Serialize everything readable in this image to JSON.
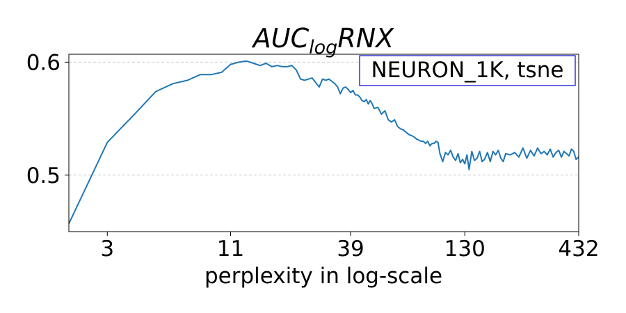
{
  "chart_data": {
    "type": "line",
    "title_main": "AUC",
    "title_sub": "log",
    "title_rest": "RNX",
    "xlabel": "perplexity in log-scale",
    "ylabel": "",
    "x_scale": "log",
    "xlim": [
      2,
      432
    ],
    "ylim": [
      0.45,
      0.607
    ],
    "x_ticks": [
      3,
      11,
      39,
      130,
      432
    ],
    "x_tick_labels": [
      "3",
      "11",
      "39",
      "130",
      "432"
    ],
    "y_ticks": [
      0.5,
      0.6
    ],
    "y_tick_labels": [
      "0.5",
      "0.6"
    ],
    "grid": "horizontal dashed",
    "legend_text": "NEURON_1K, tsne",
    "legend_placement": "top-right",
    "line_color": "#1f77b4",
    "legend_border_color": "#0000cc",
    "series": [
      {
        "x": [
          2,
          3,
          4,
          5,
          6,
          7,
          8,
          9,
          10,
          11,
          12,
          13,
          14,
          15,
          16,
          17,
          18,
          19,
          20,
          21,
          22,
          23,
          24,
          25,
          26,
          27,
          28,
          29,
          30,
          31,
          32,
          33,
          34,
          35,
          36,
          37,
          38,
          39,
          40,
          41,
          42,
          43,
          44,
          45,
          46,
          47,
          48,
          49,
          50,
          52,
          54,
          56,
          58,
          60,
          62,
          64,
          66,
          68,
          70,
          72,
          74,
          76,
          78,
          80,
          82,
          84,
          86,
          88,
          90,
          92,
          94,
          96,
          98,
          100,
          103,
          106,
          109,
          112,
          115,
          118,
          121,
          124,
          127,
          130,
          133,
          136,
          140,
          144,
          148,
          152,
          156,
          160,
          165,
          170,
          175,
          180,
          185,
          190,
          195,
          200,
          210,
          220,
          230,
          240,
          250,
          260,
          270,
          280,
          290,
          300,
          310,
          320,
          330,
          340,
          350,
          360,
          370,
          380,
          390,
          400,
          410,
          420,
          432
        ],
        "y": [
          0.457,
          0.529,
          0.554,
          0.574,
          0.581,
          0.584,
          0.589,
          0.589,
          0.591,
          0.598,
          0.6,
          0.601,
          0.599,
          0.597,
          0.599,
          0.596,
          0.597,
          0.596,
          0.596,
          0.597,
          0.593,
          0.585,
          0.584,
          0.585,
          0.586,
          0.582,
          0.578,
          0.585,
          0.584,
          0.585,
          0.583,
          0.581,
          0.578,
          0.572,
          0.577,
          0.578,
          0.576,
          0.573,
          0.575,
          0.571,
          0.571,
          0.569,
          0.566,
          0.565,
          0.567,
          0.563,
          0.566,
          0.563,
          0.559,
          0.56,
          0.554,
          0.557,
          0.549,
          0.547,
          0.549,
          0.543,
          0.541,
          0.54,
          0.538,
          0.536,
          0.535,
          0.534,
          0.532,
          0.531,
          0.53,
          0.53,
          0.528,
          0.53,
          0.526,
          0.528,
          0.528,
          0.53,
          0.529,
          0.519,
          0.512,
          0.52,
          0.518,
          0.522,
          0.516,
          0.513,
          0.519,
          0.511,
          0.514,
          0.51,
          0.518,
          0.505,
          0.521,
          0.513,
          0.515,
          0.521,
          0.512,
          0.514,
          0.52,
          0.512,
          0.521,
          0.518,
          0.522,
          0.515,
          0.512,
          0.519,
          0.518,
          0.52,
          0.516,
          0.524,
          0.515,
          0.522,
          0.517,
          0.524,
          0.519,
          0.521,
          0.518,
          0.523,
          0.516,
          0.52,
          0.522,
          0.516,
          0.521,
          0.519,
          0.517,
          0.523,
          0.521,
          0.514,
          0.516
        ]
      }
    ]
  }
}
